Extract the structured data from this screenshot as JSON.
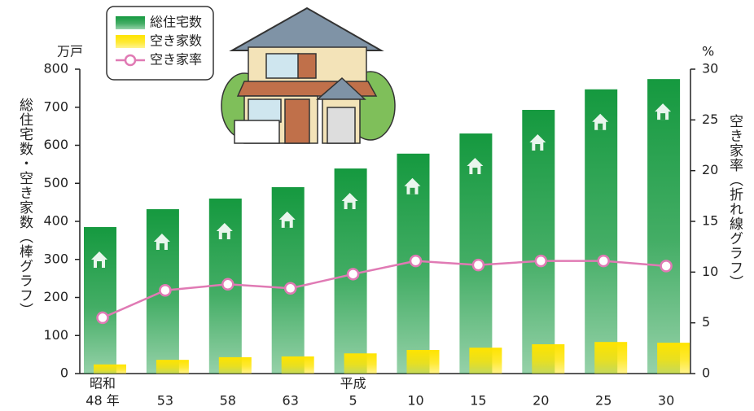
{
  "chart_data": {
    "type": "bar",
    "y_unit": "万戸",
    "y2_unit": "%",
    "ylabel": "総住宅数・空き家数（棒グラフ）",
    "y2label": "空き家率（折れ線グラフ）",
    "categories": [
      "48 年",
      "53",
      "58",
      "63",
      "5",
      "10",
      "15",
      "20",
      "25",
      "30"
    ],
    "category_eras": [
      "昭和",
      null,
      null,
      null,
      "平成",
      null,
      null,
      null,
      null,
      null
    ],
    "series": [
      {
        "name": "総住宅数",
        "type": "bar",
        "color": "#15993f",
        "values": [
          385,
          432,
          460,
          490,
          539,
          578,
          631,
          693,
          747,
          774
        ]
      },
      {
        "name": "空き家数",
        "type": "bar",
        "color": "#ffe400",
        "values": [
          24,
          36,
          43,
          45,
          53,
          62,
          68,
          77,
          83,
          81
        ]
      },
      {
        "name": "空き家率",
        "type": "line",
        "axis": "y2",
        "color": "#e07ab4",
        "values": [
          5.5,
          8.2,
          8.8,
          8.4,
          9.8,
          11.1,
          10.7,
          11.1,
          11.1,
          10.6
        ]
      }
    ],
    "ylim": [
      0,
      800
    ],
    "yticks": [
      0,
      100,
      200,
      300,
      400,
      500,
      600,
      700,
      800
    ],
    "y2lim": [
      0,
      30
    ],
    "y2ticks": [
      0,
      5,
      10,
      15,
      20,
      25,
      30
    ]
  }
}
